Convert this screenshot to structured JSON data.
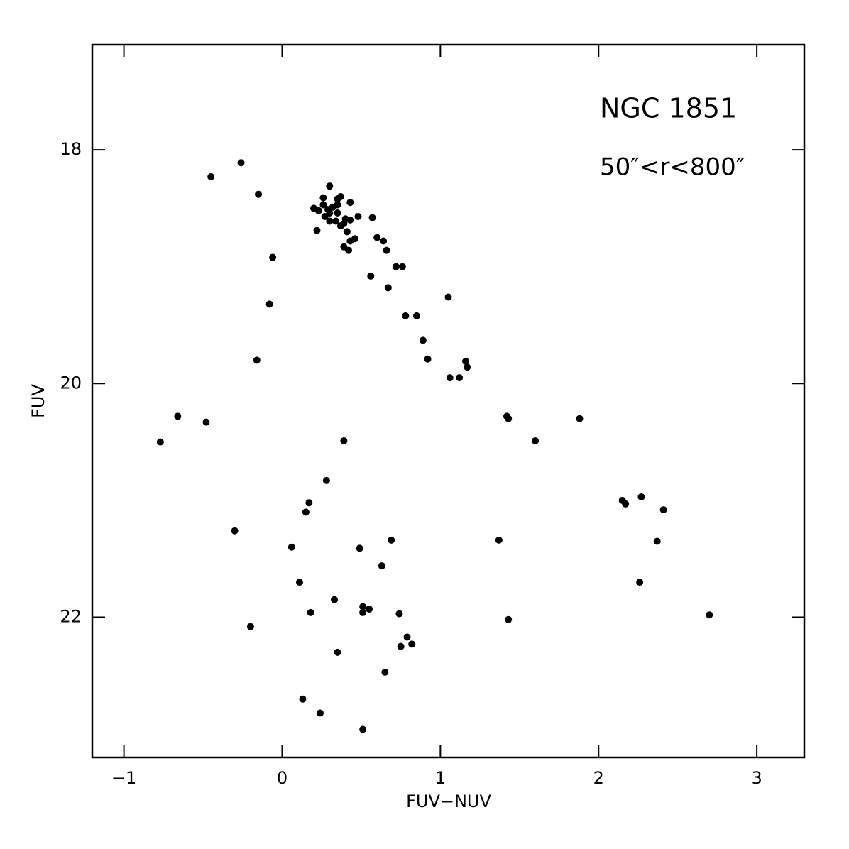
{
  "chart_data": {
    "type": "scatter",
    "annotations": [
      "NGC 1851",
      "50″<r<800″"
    ],
    "x_label": "FUV−NUV",
    "y_label": "FUV",
    "color": "#000000",
    "xlim": [
      -1.2,
      3.3
    ],
    "ylim": [
      23.2,
      17.1
    ],
    "y_inverted": true,
    "xticks": [
      {
        "value": -1,
        "label": "−1"
      },
      0,
      1,
      2,
      3
    ],
    "yticks": [
      18,
      20,
      22
    ],
    "x": [
      -0.45,
      -0.26,
      -0.15,
      -0.06,
      -0.08,
      -0.16,
      -0.66,
      -0.48,
      -0.77,
      0.3,
      0.2,
      0.23,
      0.26,
      0.26,
      0.29,
      0.27,
      0.3,
      0.32,
      0.35,
      0.35,
      0.37,
      0.35,
      0.3,
      0.34,
      0.37,
      0.39,
      0.4,
      0.43,
      0.43,
      0.48,
      0.22,
      0.41,
      0.46,
      0.43,
      0.39,
      0.42,
      0.57,
      0.6,
      0.64,
      0.66,
      0.72,
      0.76,
      0.56,
      0.67,
      1.05,
      0.78,
      0.85,
      0.89,
      0.92,
      1.16,
      1.17,
      1.06,
      1.12,
      1.42,
      1.43,
      1.88,
      1.6,
      0.39,
      0.28,
      0.17,
      0.15,
      -0.3,
      0.06,
      0.49,
      0.69,
      0.63,
      0.11,
      0.33,
      0.51,
      0.51,
      0.55,
      0.18,
      0.74,
      -0.2,
      0.79,
      0.82,
      0.75,
      0.35,
      0.65,
      0.13,
      0.24,
      0.51,
      1.37,
      1.43,
      2.15,
      2.17,
      2.27,
      2.41,
      2.37,
      2.26,
      2.7
    ],
    "y": [
      18.23,
      18.11,
      18.38,
      18.92,
      19.32,
      19.8,
      20.28,
      20.33,
      20.5,
      18.31,
      18.5,
      18.52,
      18.47,
      18.41,
      18.51,
      18.57,
      18.54,
      18.49,
      18.47,
      18.42,
      18.4,
      18.54,
      18.61,
      18.61,
      18.65,
      18.63,
      18.59,
      18.45,
      18.6,
      18.57,
      18.69,
      18.7,
      18.76,
      18.78,
      18.83,
      18.86,
      18.58,
      18.75,
      18.78,
      18.86,
      19.0,
      19.0,
      19.08,
      19.18,
      19.26,
      19.42,
      19.42,
      19.63,
      19.79,
      19.81,
      19.86,
      19.95,
      19.95,
      20.28,
      20.3,
      20.3,
      20.49,
      20.49,
      20.83,
      21.02,
      21.1,
      21.26,
      21.4,
      21.41,
      21.34,
      21.56,
      21.7,
      21.85,
      21.91,
      21.96,
      21.93,
      21.96,
      21.97,
      22.08,
      22.17,
      22.23,
      22.25,
      22.3,
      22.47,
      22.7,
      22.82,
      22.96,
      21.34,
      22.02,
      21.0,
      21.03,
      20.97,
      21.08,
      21.35,
      21.7,
      21.98
    ]
  }
}
